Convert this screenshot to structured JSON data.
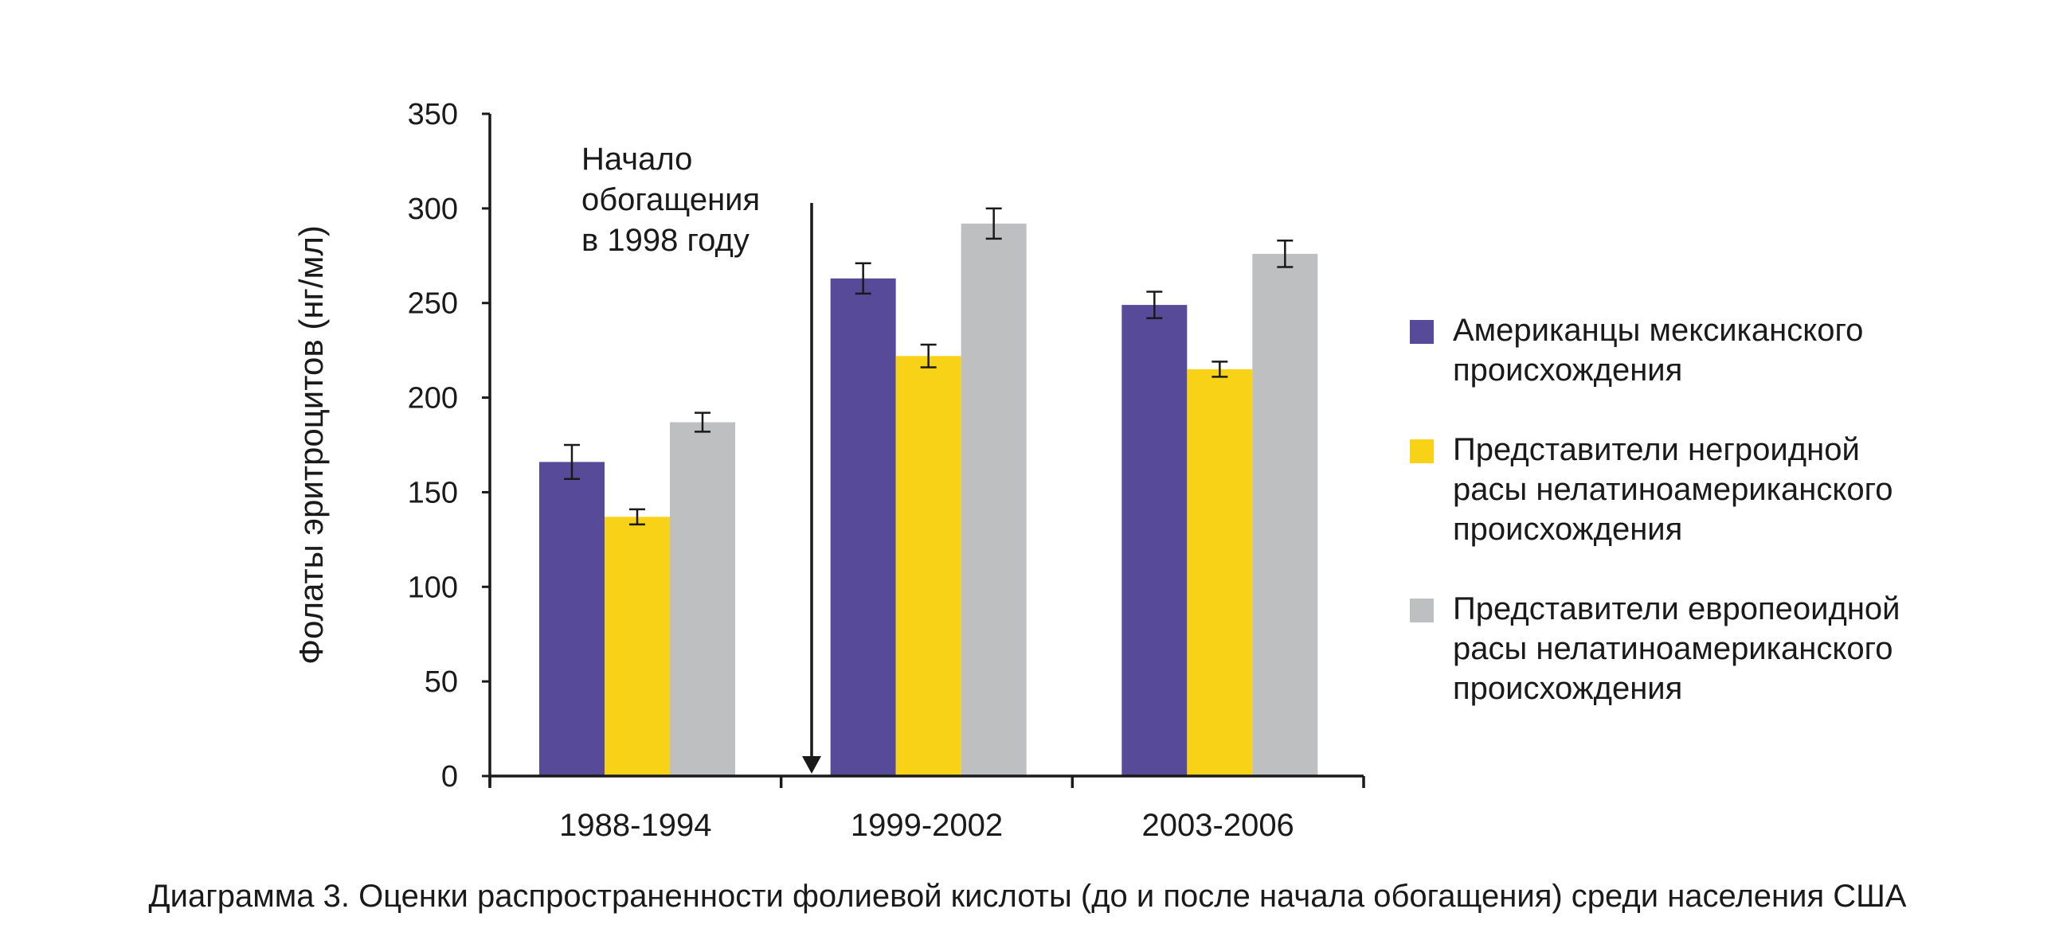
{
  "chart_data": {
    "type": "bar",
    "ylabel": "Фолаты эритроцитов (нг/мл)",
    "ylim": [
      0,
      350
    ],
    "yticks": [
      0,
      50,
      100,
      150,
      200,
      250,
      300,
      350
    ],
    "categories": [
      "1988-1994",
      "1999-2002",
      "2003-2006"
    ],
    "series": [
      {
        "name": "Американцы мексиканского происхождения",
        "name_lines": [
          "Американцы мексиканского",
          "происхождения"
        ],
        "color": "#574a98",
        "values": [
          166,
          263,
          249
        ],
        "errors": [
          9,
          8,
          7
        ]
      },
      {
        "name": "Представители негроидной расы нелатиноамериканского происхождения",
        "name_lines": [
          "Представители негроидной",
          "расы нелатиноамериканского",
          "происхождения"
        ],
        "color": "#f8d216",
        "values": [
          137,
          222,
          215
        ],
        "errors": [
          4,
          6,
          4
        ]
      },
      {
        "name": "Представители европеоидной расы нелатиноамериканского происхождения",
        "name_lines": [
          "Представители европеоидной",
          "расы нелатиноамериканского",
          "происхождения"
        ],
        "color": "#bebfc1",
        "values": [
          187,
          292,
          276
        ],
        "errors": [
          5,
          8,
          7
        ]
      }
    ],
    "annotation": {
      "lines": [
        "Начало",
        "обогащения",
        "в 1998 году"
      ]
    },
    "legend_position": "right",
    "grid": false,
    "caption": "Диаграмма 3. Оценки распространенности фолиевой кислоты (до и после начала обогащения) среди населения США"
  }
}
